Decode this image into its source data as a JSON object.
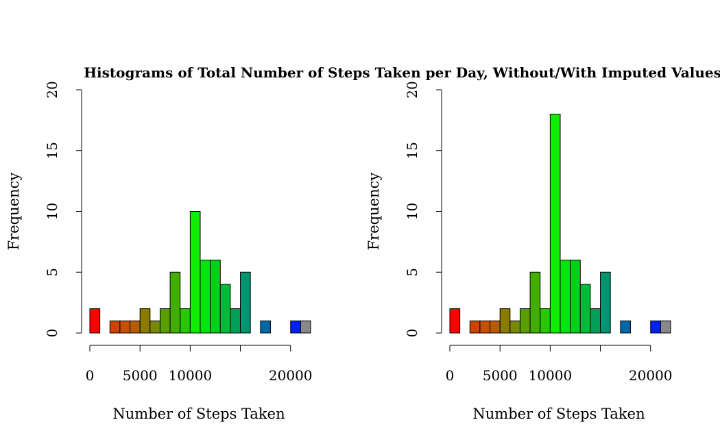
{
  "title": "Histograms of Total Number of Steps Taken per Day, Without/With Imputed Values",
  "colors": {
    "bins": [
      "#ff0000",
      "#ff0000",
      "#cc4400",
      "#c45000",
      "#b45c00",
      "#8a7a00",
      "#7a8a00",
      "#5a9f00",
      "#42ae00",
      "#28c800",
      "#10ee00",
      "#00e60c",
      "#00d020",
      "#00bb38",
      "#00a05a",
      "#009470",
      "#007a90",
      "#0067a8",
      "#0030e0",
      "#0020f0",
      "#0022f0"
    ],
    "bar_border": "#000000"
  },
  "chart_data": [
    {
      "type": "bar",
      "panel": "left",
      "xlabel": "Number of Steps Taken",
      "ylabel": "Frequency",
      "xlim": [
        0,
        22000
      ],
      "ylim": [
        0,
        20
      ],
      "bin_width": 1000,
      "x_ticks": [
        0,
        5000,
        10000,
        15000,
        20000
      ],
      "x_tick_labels": [
        "0",
        "5000",
        "10000",
        "",
        "20000"
      ],
      "y_ticks": [
        0,
        5,
        10,
        15,
        20
      ],
      "y_tick_labels": [
        "0",
        "5",
        "10",
        "15",
        "20"
      ],
      "bin_starts": [
        0,
        1000,
        2000,
        3000,
        4000,
        5000,
        6000,
        7000,
        8000,
        9000,
        10000,
        11000,
        12000,
        13000,
        14000,
        15000,
        16000,
        17000,
        18000,
        19000,
        20000,
        21000
      ],
      "values": [
        2,
        0,
        1,
        1,
        1,
        2,
        1,
        2,
        5,
        2,
        10,
        6,
        6,
        4,
        2,
        5,
        0,
        1,
        0,
        0,
        1,
        1
      ]
    },
    {
      "type": "bar",
      "panel": "right",
      "xlabel": "Number of Steps Taken",
      "ylabel": "Frequency",
      "xlim": [
        0,
        22000
      ],
      "ylim": [
        0,
        20
      ],
      "bin_width": 1000,
      "x_ticks": [
        0,
        5000,
        10000,
        15000,
        20000
      ],
      "x_tick_labels": [
        "0",
        "5000",
        "10000",
        "",
        "20000"
      ],
      "y_ticks": [
        0,
        5,
        10,
        15,
        20
      ],
      "y_tick_labels": [
        "0",
        "5",
        "10",
        "15",
        "20"
      ],
      "bin_starts": [
        0,
        1000,
        2000,
        3000,
        4000,
        5000,
        6000,
        7000,
        8000,
        9000,
        10000,
        11000,
        12000,
        13000,
        14000,
        15000,
        16000,
        17000,
        18000,
        19000,
        20000,
        21000
      ],
      "values": [
        2,
        0,
        1,
        1,
        1,
        2,
        1,
        2,
        5,
        2,
        18,
        6,
        6,
        4,
        2,
        5,
        0,
        1,
        0,
        0,
        1,
        1
      ]
    }
  ]
}
